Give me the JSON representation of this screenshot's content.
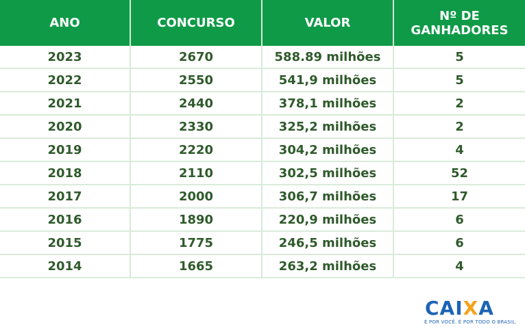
{
  "headers": {
    "ano": "ANO",
    "concurso": "CONCURSO",
    "valor": "VALOR",
    "ganhadores_line1": "Nº DE",
    "ganhadores_line2": "GANHADORES"
  },
  "rows": [
    {
      "ano": "2023",
      "concurso": "2670",
      "valor": "588.89 milhões",
      "ganhadores": "5"
    },
    {
      "ano": "2022",
      "concurso": "2550",
      "valor": "541,9 milhões",
      "ganhadores": "5"
    },
    {
      "ano": "2021",
      "concurso": "2440",
      "valor": "378,1 milhões",
      "ganhadores": "2"
    },
    {
      "ano": "2020",
      "concurso": "2330",
      "valor": "325,2 milhões",
      "ganhadores": "2"
    },
    {
      "ano": "2019",
      "concurso": "2220",
      "valor": "304,2 milhões",
      "ganhadores": "4"
    },
    {
      "ano": "2018",
      "concurso": "2110",
      "valor": "302,5 milhões",
      "ganhadores": "52"
    },
    {
      "ano": "2017",
      "concurso": "2000",
      "valor": "306,7 milhões",
      "ganhadores": "17"
    },
    {
      "ano": "2016",
      "concurso": "1890",
      "valor": "220,9 milhões",
      "ganhadores": "6"
    },
    {
      "ano": "2015",
      "concurso": "1775",
      "valor": "246,5 milhões",
      "ganhadores": "6"
    },
    {
      "ano": "2014",
      "concurso": "1665",
      "valor": "263,2 milhões",
      "ganhadores": "4"
    }
  ],
  "logo": {
    "word_main": "CAI",
    "word_x": "X",
    "word_end": "A",
    "tagline": "É POR VOCÊ. É POR TODO O BRASIL."
  },
  "colors": {
    "header_bg": "#0f9a47",
    "text": "#2f5a2b",
    "logo_blue": "#1d63b4",
    "logo_orange": "#f5a21b"
  }
}
